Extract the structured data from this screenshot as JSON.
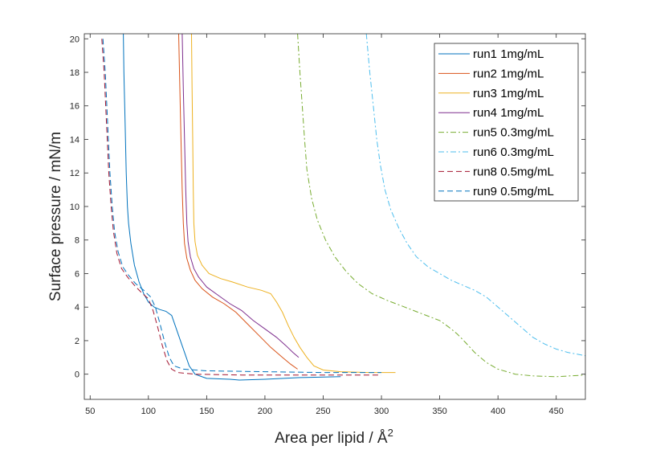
{
  "chart_data": {
    "type": "line",
    "title": "",
    "xlabel": "Area per lipid / Å",
    "xlabel_superscript": "2",
    "ylabel": "Surface pressure / mN/m",
    "xlim": [
      45,
      475
    ],
    "ylim": [
      -1.5,
      20.3
    ],
    "x_ticks": [
      50,
      100,
      150,
      200,
      250,
      300,
      350,
      400,
      450
    ],
    "y_ticks": [
      0,
      2,
      4,
      6,
      8,
      10,
      12,
      14,
      16,
      18,
      20
    ],
    "grid": false,
    "legend_position": "top-right",
    "series": [
      {
        "name": "run1 1mg/mL",
        "color": "#0072BD",
        "dash": "solid",
        "points": [
          [
            78.5,
            20.3
          ],
          [
            79,
            18
          ],
          [
            80,
            15
          ],
          [
            81,
            12
          ],
          [
            82,
            10
          ],
          [
            83,
            9
          ],
          [
            85,
            7.8
          ],
          [
            88,
            6.5
          ],
          [
            92,
            5.5
          ],
          [
            96,
            4.8
          ],
          [
            100,
            4.3
          ],
          [
            105,
            4.0
          ],
          [
            110,
            3.85
          ],
          [
            115,
            3.75
          ],
          [
            120,
            3.5
          ],
          [
            123,
            2.9
          ],
          [
            127,
            2.1
          ],
          [
            131,
            1.3
          ],
          [
            135,
            0.5
          ],
          [
            140,
            0.0
          ],
          [
            150,
            -0.25
          ],
          [
            170,
            -0.3
          ],
          [
            178,
            -0.35
          ],
          [
            200,
            -0.3
          ],
          [
            230,
            -0.2
          ],
          [
            265,
            -0.15
          ]
        ]
      },
      {
        "name": "run2 1mg/mL",
        "color": "#D95319",
        "dash": "solid",
        "points": [
          [
            126,
            20.3
          ],
          [
            127,
            17
          ],
          [
            128,
            14
          ],
          [
            129,
            11
          ],
          [
            130,
            9
          ],
          [
            131,
            7.8
          ],
          [
            133,
            6.9
          ],
          [
            136,
            6.2
          ],
          [
            140,
            5.6
          ],
          [
            146,
            5.1
          ],
          [
            155,
            4.6
          ],
          [
            165,
            4.2
          ],
          [
            175,
            3.7
          ],
          [
            185,
            3.0
          ],
          [
            195,
            2.3
          ],
          [
            205,
            1.6
          ],
          [
            215,
            1.0
          ],
          [
            222,
            0.6
          ],
          [
            228,
            0.3
          ]
        ]
      },
      {
        "name": "run3 1mg/mL",
        "color": "#EDB120",
        "dash": "solid",
        "points": [
          [
            137,
            20.3
          ],
          [
            137.5,
            17
          ],
          [
            138,
            14
          ],
          [
            138.5,
            11
          ],
          [
            139,
            9
          ],
          [
            140,
            7.9
          ],
          [
            142,
            7.1
          ],
          [
            146,
            6.5
          ],
          [
            152,
            6.0
          ],
          [
            162,
            5.7
          ],
          [
            172,
            5.5
          ],
          [
            185,
            5.2
          ],
          [
            197,
            5.0
          ],
          [
            205,
            4.8
          ],
          [
            210,
            4.3
          ],
          [
            215,
            3.7
          ],
          [
            220,
            2.9
          ],
          [
            225,
            2.2
          ],
          [
            230,
            1.6
          ],
          [
            236,
            1.0
          ],
          [
            242,
            0.5
          ],
          [
            250,
            0.25
          ],
          [
            265,
            0.15
          ],
          [
            290,
            0.1
          ],
          [
            312,
            0.1
          ]
        ]
      },
      {
        "name": "run4 1mg/mL",
        "color": "#7E2F8E",
        "dash": "solid",
        "points": [
          [
            129,
            20.3
          ],
          [
            130,
            17
          ],
          [
            131,
            14
          ],
          [
            132,
            11
          ],
          [
            133,
            9
          ],
          [
            134,
            7.9
          ],
          [
            136,
            7.0
          ],
          [
            139,
            6.3
          ],
          [
            143,
            5.8
          ],
          [
            150,
            5.2
          ],
          [
            160,
            4.7
          ],
          [
            170,
            4.2
          ],
          [
            180,
            3.8
          ],
          [
            190,
            3.2
          ],
          [
            200,
            2.7
          ],
          [
            210,
            2.2
          ],
          [
            218,
            1.7
          ],
          [
            224,
            1.3
          ],
          [
            229,
            1.0
          ]
        ]
      },
      {
        "name": "run5 0.3mg/mL",
        "color": "#77AC30",
        "dash": "dashdot",
        "points": [
          [
            228,
            20.3
          ],
          [
            230,
            18
          ],
          [
            232,
            16
          ],
          [
            234,
            14
          ],
          [
            236,
            12.2
          ],
          [
            240,
            10.5
          ],
          [
            245,
            9.2
          ],
          [
            252,
            8
          ],
          [
            260,
            7
          ],
          [
            270,
            6.1
          ],
          [
            280,
            5.4
          ],
          [
            292,
            4.8
          ],
          [
            305,
            4.4
          ],
          [
            320,
            4.0
          ],
          [
            335,
            3.6
          ],
          [
            350,
            3.2
          ],
          [
            358,
            2.8
          ],
          [
            365,
            2.4
          ],
          [
            372,
            1.9
          ],
          [
            380,
            1.3
          ],
          [
            390,
            0.7
          ],
          [
            400,
            0.3
          ],
          [
            415,
            0.0
          ],
          [
            430,
            -0.1
          ],
          [
            450,
            -0.15
          ],
          [
            475,
            -0.05
          ]
        ]
      },
      {
        "name": "run6 0.3mg/mL",
        "color": "#4DBEEE",
        "dash": "dashdot",
        "points": [
          [
            287,
            20.3
          ],
          [
            290,
            18
          ],
          [
            293,
            16
          ],
          [
            296,
            14
          ],
          [
            299,
            12.5
          ],
          [
            303,
            11
          ],
          [
            308,
            9.8
          ],
          [
            315,
            8.7
          ],
          [
            322,
            7.8
          ],
          [
            330,
            7.0
          ],
          [
            340,
            6.4
          ],
          [
            350,
            6.0
          ],
          [
            360,
            5.6
          ],
          [
            370,
            5.3
          ],
          [
            380,
            5.0
          ],
          [
            390,
            4.6
          ],
          [
            400,
            4.0
          ],
          [
            410,
            3.4
          ],
          [
            420,
            2.8
          ],
          [
            430,
            2.2
          ],
          [
            440,
            1.8
          ],
          [
            450,
            1.5
          ],
          [
            460,
            1.3
          ],
          [
            475,
            1.1
          ]
        ]
      },
      {
        "name": "run8 0.5mg/mL",
        "color": "#A2142F",
        "dash": "dashed",
        "points": [
          [
            60,
            20
          ],
          [
            62,
            18
          ],
          [
            64,
            15
          ],
          [
            66,
            12
          ],
          [
            68,
            10
          ],
          [
            70,
            8.5
          ],
          [
            73,
            7.2
          ],
          [
            77,
            6.3
          ],
          [
            82,
            5.8
          ],
          [
            88,
            5.3
          ],
          [
            95,
            4.8
          ],
          [
            100,
            4.5
          ],
          [
            104,
            3.8
          ],
          [
            108,
            2.8
          ],
          [
            112,
            1.7
          ],
          [
            116,
            0.8
          ],
          [
            120,
            0.3
          ],
          [
            125,
            0.1
          ],
          [
            140,
            0.0
          ],
          [
            180,
            -0.05
          ],
          [
            240,
            -0.05
          ],
          [
            300,
            -0.05
          ]
        ]
      },
      {
        "name": "run9 0.5mg/mL",
        "color": "#0072BD",
        "dash": "dashed",
        "points": [
          [
            61,
            20
          ],
          [
            63,
            18
          ],
          [
            65,
            15
          ],
          [
            67,
            12
          ],
          [
            69,
            10
          ],
          [
            71,
            8.5
          ],
          [
            74,
            7.3
          ],
          [
            78,
            6.4
          ],
          [
            83,
            5.9
          ],
          [
            89,
            5.4
          ],
          [
            96,
            5.0
          ],
          [
            102,
            4.6
          ],
          [
            106,
            4.0
          ],
          [
            110,
            3.0
          ],
          [
            114,
            1.9
          ],
          [
            118,
            1.0
          ],
          [
            122,
            0.5
          ],
          [
            130,
            0.3
          ],
          [
            150,
            0.2
          ],
          [
            200,
            0.15
          ],
          [
            250,
            0.1
          ],
          [
            300,
            0.1
          ]
        ]
      }
    ]
  }
}
